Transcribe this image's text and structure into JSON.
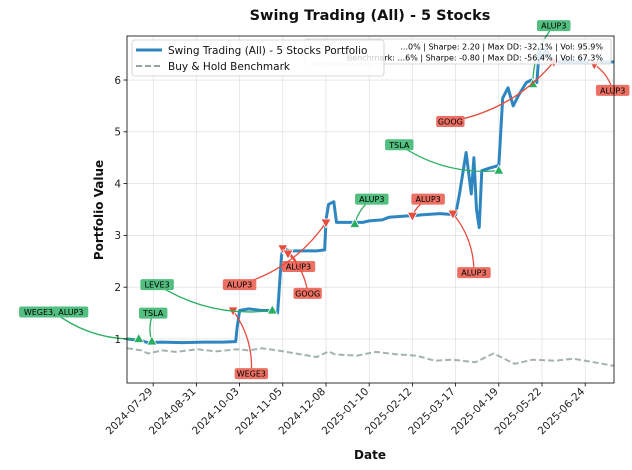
{
  "chart_data": {
    "type": "line",
    "title": "Swing Trading (All) - 5 Stocks",
    "xlabel": "Date",
    "ylabel": "Portfolio Value",
    "x_range": [
      "2024-07-09",
      "2025-07-16"
    ],
    "ylim": [
      0.15,
      6.85
    ],
    "grid": true,
    "legend_position": "top-left",
    "x_ticks": [
      "2024-07-29",
      "2024-08-31",
      "2024-10-03",
      "2024-11-05",
      "2024-12-08",
      "2025-01-10",
      "2025-02-12",
      "2025-03-17",
      "2025-04-19",
      "2025-05-22",
      "2025-06-24"
    ],
    "y_ticks": [
      1,
      2,
      3,
      4,
      5,
      6
    ],
    "colors": {
      "portfolio": "#2e86c1",
      "benchmark": "#95a5a6",
      "buy": "#27ae60",
      "sell": "#e74c3c",
      "buy_label_bg": "#52be80",
      "sell_label_bg": "#ec7063"
    },
    "stats": {
      "portfolio": "...0% | Sharpe: 2.20 | Max DD: -32.1% | Vol: 95.9%",
      "benchmark": "Benchmark: ...6% | Sharpe: -0.80 | Max DD: -56.4% | Vol: 67.3%"
    },
    "series": [
      {
        "name": "Swing Trading (All) - 5 Stocks Portfolio",
        "x": [
          "2024-07-09",
          "2024-07-17",
          "2024-07-25",
          "2024-08-05",
          "2024-08-20",
          "2024-09-05",
          "2024-09-20",
          "2024-09-30",
          "2024-10-01",
          "2024-10-03",
          "2024-10-10",
          "2024-10-20",
          "2024-10-28",
          "2024-11-01",
          "2024-11-04",
          "2024-11-05",
          "2024-11-10",
          "2024-11-20",
          "2024-12-01",
          "2024-12-07",
          "2024-12-08",
          "2024-12-10",
          "2024-12-14",
          "2024-12-16",
          "2024-12-22",
          "2025-01-05",
          "2025-01-10",
          "2025-01-20",
          "2025-01-25",
          "2025-02-10",
          "2025-02-12",
          "2025-02-20",
          "2025-03-05",
          "2025-03-17",
          "2025-03-20",
          "2025-03-25",
          "2025-03-29",
          "2025-03-31",
          "2025-04-02",
          "2025-04-04",
          "2025-04-06",
          "2025-04-12",
          "2025-04-19",
          "2025-04-22",
          "2025-04-26",
          "2025-04-30",
          "2025-05-04",
          "2025-05-10",
          "2025-05-14",
          "2025-05-18",
          "2025-05-20",
          "2025-05-22",
          "2025-05-25",
          "2025-05-30",
          "2025-06-05",
          "2025-06-24",
          "2025-07-16"
        ],
        "values": [
          1.0,
          0.98,
          0.93,
          0.94,
          0.93,
          0.94,
          0.94,
          0.95,
          1.2,
          1.55,
          1.58,
          1.55,
          1.55,
          1.5,
          2.6,
          2.75,
          2.7,
          2.7,
          2.7,
          2.72,
          3.3,
          3.6,
          3.65,
          3.25,
          3.25,
          3.25,
          3.28,
          3.3,
          3.35,
          3.38,
          3.38,
          3.4,
          3.42,
          3.4,
          3.8,
          4.6,
          3.8,
          4.5,
          3.5,
          3.15,
          4.25,
          4.3,
          4.35,
          5.65,
          5.85,
          5.5,
          5.7,
          5.95,
          6.0,
          5.95,
          6.6,
          6.4,
          6.6,
          6.38,
          6.35,
          6.35,
          6.35
        ]
      },
      {
        "name": "Buy & Hold Benchmark",
        "x": [
          "2024-07-09",
          "2024-07-20",
          "2024-07-25",
          "2024-08-05",
          "2024-08-15",
          "2024-09-01",
          "2024-09-15",
          "2024-10-01",
          "2024-10-10",
          "2024-10-20",
          "2024-11-01",
          "2024-11-15",
          "2024-12-01",
          "2024-12-10",
          "2024-12-15",
          "2025-01-01",
          "2025-01-15",
          "2025-02-01",
          "2025-02-15",
          "2025-03-01",
          "2025-03-15",
          "2025-04-01",
          "2025-04-10",
          "2025-04-15",
          "2025-05-01",
          "2025-05-15",
          "2025-06-01",
          "2025-06-15",
          "2025-07-01",
          "2025-07-16"
        ],
        "values": [
          0.82,
          0.78,
          0.72,
          0.78,
          0.75,
          0.8,
          0.76,
          0.8,
          0.78,
          0.82,
          0.78,
          0.72,
          0.65,
          0.76,
          0.7,
          0.68,
          0.75,
          0.7,
          0.68,
          0.58,
          0.6,
          0.55,
          0.66,
          0.72,
          0.52,
          0.6,
          0.58,
          0.62,
          0.55,
          0.48
        ]
      }
    ],
    "signals": [
      {
        "type": "buy",
        "date": "2024-07-18",
        "value": 1.0,
        "label": "WEGE3, ALUP3",
        "label_date": "2024-05-14",
        "label_value": 1.52
      },
      {
        "type": "buy",
        "date": "2024-07-28",
        "value": 0.95,
        "label": "TSLA",
        "label_date": "2024-07-29",
        "label_value": 1.5
      },
      {
        "type": "sell",
        "date": "2024-09-28",
        "value": 1.55,
        "label": "WEGE3",
        "label_date": "2024-10-12",
        "label_value": 0.33
      },
      {
        "type": "buy",
        "date": "2024-10-28",
        "value": 1.55,
        "label": "LEVE3",
        "label_date": "2024-08-01",
        "label_value": 2.05
      },
      {
        "type": "sell",
        "date": "2024-11-05",
        "value": 2.75,
        "label": "ALUP3",
        "label_date": "2024-11-17",
        "label_value": 2.4
      },
      {
        "type": "sell",
        "date": "2024-11-09",
        "value": 2.65,
        "label": "GOOG",
        "label_date": "2024-11-24",
        "label_value": 1.88
      },
      {
        "type": "sell",
        "date": "2024-12-08",
        "value": 3.25,
        "label": "ALUP3",
        "label_date": "2024-10-03",
        "label_value": 2.05
      },
      {
        "type": "buy",
        "date": "2024-12-30",
        "value": 3.22,
        "label": "ALUP3",
        "label_date": "2025-01-12",
        "label_value": 3.7
      },
      {
        "type": "sell",
        "date": "2025-02-12",
        "value": 3.38,
        "label": "ALUP3",
        "label_date": "2025-02-24",
        "label_value": 3.7
      },
      {
        "type": "sell",
        "date": "2025-03-15",
        "value": 3.42,
        "label": "ALUP3",
        "label_date": "2025-03-31",
        "label_value": 2.28
      },
      {
        "type": "buy",
        "date": "2025-04-19",
        "value": 4.25,
        "label": "TSLA",
        "label_date": "2025-02-02",
        "label_value": 4.75
      },
      {
        "type": "buy",
        "date": "2025-05-15",
        "value": 5.92,
        "label": "ALUP3",
        "label_date": "2025-05-31",
        "label_value": 7.05
      },
      {
        "type": "sell",
        "date": "2025-05-31",
        "value": 6.35,
        "label": "GOOG",
        "label_date": "2025-03-13",
        "label_value": 5.2
      },
      {
        "type": "sell",
        "date": "2025-07-01",
        "value": 6.3,
        "label": "ALUP3",
        "label_date": "2025-07-15",
        "label_value": 5.8
      }
    ]
  }
}
